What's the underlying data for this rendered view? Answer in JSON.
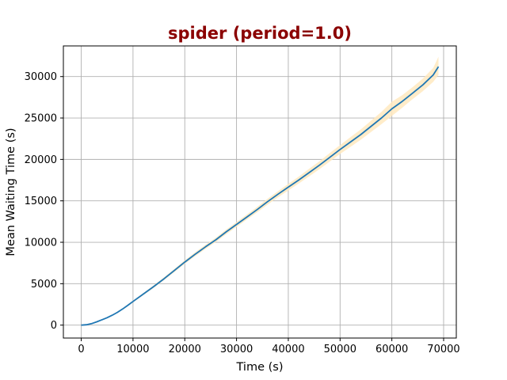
{
  "chart_data": {
    "type": "line",
    "title": "spider (period=1.0)",
    "xlabel": "Time (s)",
    "ylabel": "Mean Waiting Time (s)",
    "xlim": [
      -3450,
      72450
    ],
    "ylim": [
      -1560,
      33700
    ],
    "xticks": [
      0,
      10000,
      20000,
      30000,
      40000,
      50000,
      60000,
      70000
    ],
    "yticks": [
      0,
      5000,
      10000,
      15000,
      20000,
      25000,
      30000
    ],
    "grid": true,
    "legend": "none",
    "colors": {
      "title": "#8b0000",
      "line": "#1f77b4",
      "band": "#ffe9bf",
      "grid": "#b0b0b0"
    },
    "series": [
      {
        "x": [
          0,
          1000,
          2000,
          3000,
          4000,
          5000,
          6000,
          7000,
          8000,
          9000,
          10000,
          12000,
          14000,
          16000,
          18000,
          20000,
          22000,
          24000,
          26000,
          28000,
          30000,
          32000,
          34000,
          36000,
          38000,
          40000,
          42000,
          44000,
          46000,
          48000,
          50000,
          52000,
          54000,
          56000,
          58000,
          60000,
          62000,
          64000,
          66000,
          68000,
          69000
        ],
        "y": [
          0,
          50,
          180,
          400,
          650,
          900,
          1200,
          1550,
          1950,
          2400,
          2850,
          3750,
          4650,
          5600,
          6600,
          7600,
          8550,
          9450,
          10300,
          11250,
          12150,
          13050,
          13950,
          14900,
          15800,
          16650,
          17500,
          18400,
          19300,
          20250,
          21200,
          22100,
          23000,
          24000,
          25000,
          26100,
          27000,
          28000,
          29000,
          30200,
          31200
        ],
        "band_lower": [
          0,
          40,
          160,
          370,
          610,
          850,
          1140,
          1480,
          1860,
          2300,
          2740,
          3620,
          4500,
          5430,
          6410,
          7390,
          8320,
          9200,
          10040,
          10970,
          11860,
          12740,
          13620,
          14540,
          15430,
          16250,
          17080,
          17940,
          18820,
          19740,
          20660,
          21520,
          22380,
          23320,
          24260,
          25240,
          26240,
          27280,
          28240,
          29360,
          30200
        ],
        "band_upper": [
          0,
          60,
          200,
          430,
          690,
          950,
          1260,
          1620,
          2040,
          2500,
          2960,
          3880,
          4800,
          5770,
          6790,
          7810,
          8780,
          9700,
          10560,
          11530,
          12440,
          13360,
          14280,
          15260,
          16170,
          17050,
          17920,
          18860,
          19780,
          20760,
          21740,
          22680,
          23620,
          24680,
          25740,
          26960,
          27760,
          28720,
          29760,
          31040,
          32400
        ]
      }
    ]
  }
}
